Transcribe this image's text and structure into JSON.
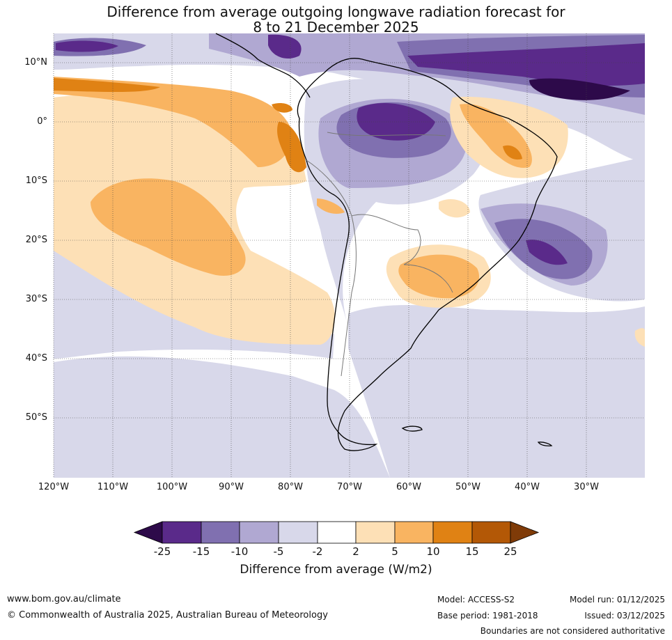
{
  "title": {
    "line1": "Difference from average outgoing longwave radiation forecast for",
    "line2": "8 to 21 December 2025"
  },
  "map": {
    "lat_labels": [
      "10°N",
      "0°",
      "10°S",
      "20°S",
      "30°S",
      "40°S",
      "50°S"
    ],
    "lon_labels": [
      "120°W",
      "110°W",
      "100°W",
      "90°W",
      "80°W",
      "70°W",
      "60°W",
      "50°W",
      "40°W",
      "30°W"
    ],
    "lat_range": [
      15,
      -60
    ],
    "lon_range": [
      -120,
      -20
    ],
    "gridlines": true,
    "region": "South America and surrounding oceans"
  },
  "colorbar": {
    "ticks": [
      "-25",
      "-15",
      "-10",
      "-5",
      "-2",
      "2",
      "5",
      "10",
      "15",
      "25"
    ],
    "title": "Difference from average (W/m2)",
    "colors": {
      "lt_-25": "#2d0a4a",
      "-25_-15": "#5a2a8a",
      "-15_-10": "#8070b0",
      "-10_-5": "#b0a8d2",
      "-5_-2": "#d8d8ea",
      "-2_2": "#ffffff",
      "2_5": "#fde0b6",
      "5_10": "#f9b461",
      "10_15": "#e08214",
      "15_25": "#b35806",
      "gt_25": "#7f3b08"
    }
  },
  "footer": {
    "website": "www.bom.gov.au/climate",
    "copyright": "© Commonwealth of Australia 2025, Australian Bureau of Meteorology",
    "model": "Model: ACCESS-S2",
    "base_period": "Base period: 1981-2018",
    "model_run": "Model run: 01/12/2025",
    "issued": "Issued: 03/12/2025",
    "disclaimer": "Boundaries are not considered authoritative"
  }
}
